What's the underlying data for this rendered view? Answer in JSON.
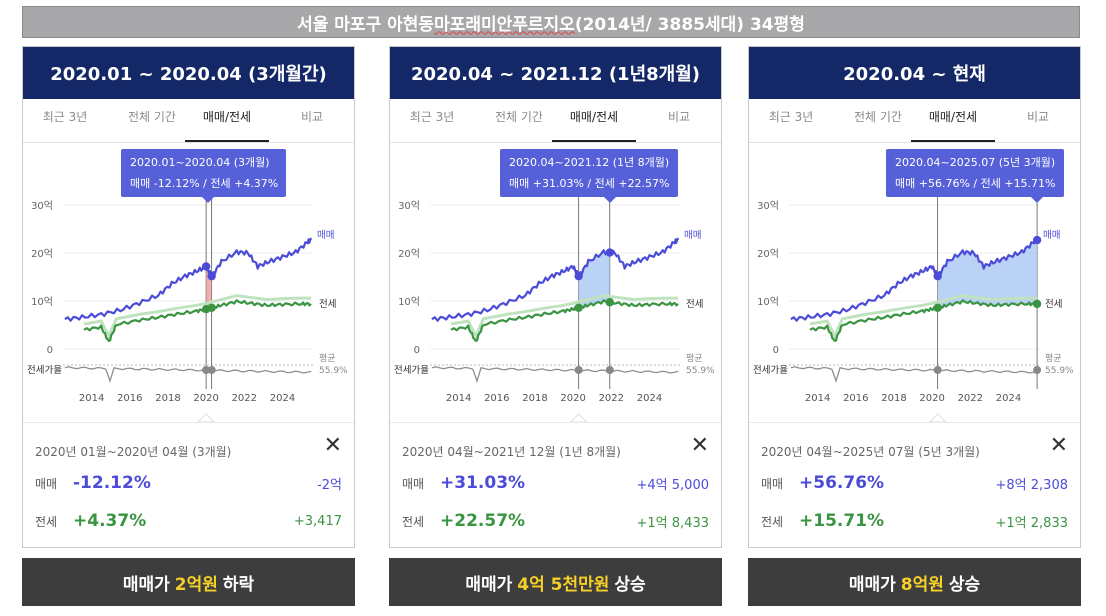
{
  "banner": {
    "prefix": "서울 마포구 아현동 ",
    "name": "마포래미안푸르지오",
    "suffix": "(2014년/ 3885세대) 34평형"
  },
  "tabs": [
    "최근 3년",
    "전체 기간",
    "매매/전세",
    "비교"
  ],
  "chart_common": {
    "y_ticks": [
      "30억",
      "20억",
      "10억",
      "0"
    ],
    "x_ticks": [
      "2014",
      "2016",
      "2018",
      "2020",
      "2022",
      "2024"
    ],
    "sale_label": "매매",
    "jeonse_label": "전세",
    "ratio_label": "전세가율",
    "avg_label": "평균",
    "avg_value": "55.9%"
  },
  "colors": {
    "sale": "#4b4bd8",
    "jeonse": "#3a9442",
    "ratio": "#8e8e8e",
    "header": "#142766",
    "tooltip": "#5660d8",
    "highlight": "#f6d027"
  },
  "chart_data": [
    {
      "type": "line",
      "x_axis": "year",
      "y_unit": "억",
      "ylim": [
        0,
        30
      ],
      "xlim": [
        2012.5,
        2025.6
      ],
      "period": [
        2020.0,
        2020.29
      ],
      "series": [
        {
          "name": "매매",
          "points": [
            [
              2012.6,
              6.2
            ],
            [
              2013.5,
              6.6
            ],
            [
              2014.5,
              7.2
            ],
            [
              2015.5,
              8.1
            ],
            [
              2016.5,
              9.6
            ],
            [
              2017.5,
              11.2
            ],
            [
              2018.2,
              13.6
            ],
            [
              2018.9,
              15.2
            ],
            [
              2019.5,
              16.2
            ],
            [
              2020.0,
              17.2
            ],
            [
              2020.3,
              15.1
            ],
            [
              2020.8,
              18.2
            ],
            [
              2021.6,
              20.2
            ],
            [
              2022.2,
              20.0
            ],
            [
              2022.7,
              17.2
            ],
            [
              2023.3,
              18.2
            ],
            [
              2024.0,
              19.2
            ],
            [
              2024.7,
              20.2
            ],
            [
              2025.3,
              22.2
            ],
            [
              2025.5,
              22.7
            ]
          ]
        },
        {
          "name": "전세",
          "points": [
            [
              2013.6,
              4.0
            ],
            [
              2014.5,
              4.6
            ],
            [
              2014.9,
              1.5
            ],
            [
              2015.3,
              5.1
            ],
            [
              2016.5,
              6.0
            ],
            [
              2017.5,
              6.6
            ],
            [
              2018.5,
              7.3
            ],
            [
              2019.5,
              7.9
            ],
            [
              2020.0,
              8.3
            ],
            [
              2020.3,
              8.6
            ],
            [
              2020.8,
              9.1
            ],
            [
              2021.6,
              9.9
            ],
            [
              2022.4,
              9.5
            ],
            [
              2023.2,
              9.1
            ],
            [
              2024.0,
              9.3
            ],
            [
              2025.0,
              9.4
            ],
            [
              2025.5,
              9.4
            ]
          ]
        }
      ],
      "tooltip": {
        "range": "2020.01~2020.04 (3개월)",
        "sale_text": "매매 -12.12%",
        "jeonse_text": "전세 +4.37%"
      }
    },
    {
      "type": "line",
      "x_axis": "year",
      "y_unit": "억",
      "ylim": [
        0,
        30
      ],
      "xlim": [
        2012.5,
        2025.6
      ],
      "period": [
        2020.29,
        2021.92
      ],
      "series": [
        {
          "name": "매매",
          "points": [
            [
              2012.6,
              6.2
            ],
            [
              2013.5,
              6.6
            ],
            [
              2014.5,
              7.2
            ],
            [
              2015.5,
              8.1
            ],
            [
              2016.5,
              9.6
            ],
            [
              2017.5,
              11.2
            ],
            [
              2018.2,
              13.6
            ],
            [
              2018.9,
              15.2
            ],
            [
              2019.5,
              16.2
            ],
            [
              2020.0,
              17.2
            ],
            [
              2020.3,
              15.1
            ],
            [
              2020.8,
              18.2
            ],
            [
              2021.6,
              20.2
            ],
            [
              2022.2,
              20.0
            ],
            [
              2022.7,
              17.2
            ],
            [
              2023.3,
              18.2
            ],
            [
              2024.0,
              19.2
            ],
            [
              2024.7,
              20.2
            ],
            [
              2025.3,
              22.2
            ],
            [
              2025.5,
              22.7
            ]
          ]
        },
        {
          "name": "전세",
          "points": [
            [
              2013.6,
              4.0
            ],
            [
              2014.5,
              4.6
            ],
            [
              2014.9,
              1.5
            ],
            [
              2015.3,
              5.1
            ],
            [
              2016.5,
              6.0
            ],
            [
              2017.5,
              6.6
            ],
            [
              2018.5,
              7.3
            ],
            [
              2019.5,
              7.9
            ],
            [
              2020.0,
              8.3
            ],
            [
              2020.3,
              8.6
            ],
            [
              2020.8,
              9.1
            ],
            [
              2021.6,
              9.9
            ],
            [
              2022.4,
              9.5
            ],
            [
              2023.2,
              9.1
            ],
            [
              2024.0,
              9.3
            ],
            [
              2025.0,
              9.4
            ],
            [
              2025.5,
              9.4
            ]
          ]
        }
      ],
      "tooltip": {
        "range": "2020.04~2021.12 (1년 8개월)",
        "sale_text": "매매 +31.03%",
        "jeonse_text": "전세 +22.57%"
      }
    },
    {
      "type": "line",
      "x_axis": "year",
      "y_unit": "억",
      "ylim": [
        0,
        30
      ],
      "xlim": [
        2012.5,
        2025.6
      ],
      "period": [
        2020.29,
        2025.5
      ],
      "series": [
        {
          "name": "매매",
          "points": [
            [
              2012.6,
              6.2
            ],
            [
              2013.5,
              6.6
            ],
            [
              2014.5,
              7.2
            ],
            [
              2015.5,
              8.1
            ],
            [
              2016.5,
              9.6
            ],
            [
              2017.5,
              11.2
            ],
            [
              2018.2,
              13.6
            ],
            [
              2018.9,
              15.2
            ],
            [
              2019.5,
              16.2
            ],
            [
              2020.0,
              17.2
            ],
            [
              2020.3,
              15.1
            ],
            [
              2020.8,
              18.2
            ],
            [
              2021.6,
              20.2
            ],
            [
              2022.2,
              20.0
            ],
            [
              2022.7,
              17.2
            ],
            [
              2023.3,
              18.2
            ],
            [
              2024.0,
              19.2
            ],
            [
              2024.7,
              20.2
            ],
            [
              2025.3,
              22.2
            ],
            [
              2025.5,
              22.7
            ]
          ]
        },
        {
          "name": "전세",
          "points": [
            [
              2013.6,
              4.0
            ],
            [
              2014.5,
              4.6
            ],
            [
              2014.9,
              1.5
            ],
            [
              2015.3,
              5.1
            ],
            [
              2016.5,
              6.0
            ],
            [
              2017.5,
              6.6
            ],
            [
              2018.5,
              7.3
            ],
            [
              2019.5,
              7.9
            ],
            [
              2020.0,
              8.3
            ],
            [
              2020.3,
              8.6
            ],
            [
              2020.8,
              9.1
            ],
            [
              2021.6,
              9.9
            ],
            [
              2022.4,
              9.5
            ],
            [
              2023.2,
              9.1
            ],
            [
              2024.0,
              9.3
            ],
            [
              2025.0,
              9.4
            ],
            [
              2025.5,
              9.4
            ]
          ]
        }
      ],
      "tooltip": {
        "range": "2020.04~2025.07 (5년 3개월)",
        "sale_text": "매매 +56.76%",
        "jeonse_text": "전세 +15.71%"
      }
    }
  ],
  "panels": [
    {
      "header": "2020.01 ~ 2020.04 (3개월간)",
      "summary": {
        "range": "2020년 01월~2020년 04월 (3개월)",
        "sale_label": "매매",
        "sale_pct": "-12.12%",
        "sale_amt": "-2억",
        "jeonse_label": "전세",
        "jeonse_pct": "+4.37%",
        "jeonse_amt": "+3,417"
      },
      "footer": {
        "pre": "매매가",
        "hl": "2억원",
        "post": "하락"
      }
    },
    {
      "header": "2020.04 ~ 2021.12 (1년8개월)",
      "summary": {
        "range": "2020년 04월~2021년 12월 (1년 8개월)",
        "sale_label": "매매",
        "sale_pct": "+31.03%",
        "sale_amt": "+4억 5,000",
        "jeonse_label": "전세",
        "jeonse_pct": "+22.57%",
        "jeonse_amt": "+1억 8,433"
      },
      "footer": {
        "pre": "매매가",
        "hl": "4억 5천만원",
        "post": "상승"
      }
    },
    {
      "header": "2020.04 ~ 현재",
      "summary": {
        "range": "2020년 04월~2025년 07월 (5년 3개월)",
        "sale_label": "매매",
        "sale_pct": "+56.76%",
        "sale_amt": "+8억 2,308",
        "jeonse_label": "전세",
        "jeonse_pct": "+15.71%",
        "jeonse_amt": "+1억 2,833"
      },
      "footer": {
        "pre": "매매가",
        "hl": "8억원",
        "post": "상승"
      }
    }
  ]
}
